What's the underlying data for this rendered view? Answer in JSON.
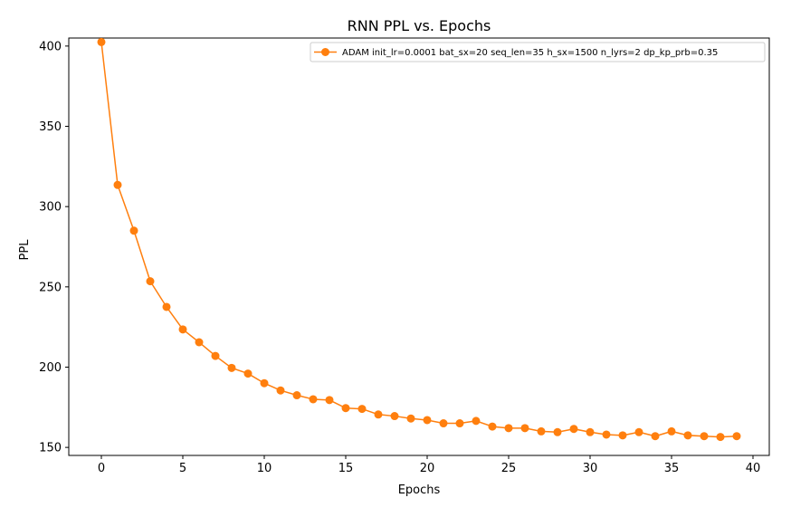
{
  "chart_data": {
    "type": "line",
    "title": "RNN PPL vs. Epochs",
    "xlabel": "Epochs",
    "ylabel": "PPL",
    "xlim": [
      -2,
      41
    ],
    "ylim": [
      145,
      405
    ],
    "xticks": [
      0,
      5,
      10,
      15,
      20,
      25,
      30,
      35,
      40
    ],
    "yticks": [
      150,
      200,
      250,
      300,
      350,
      400
    ],
    "grid": false,
    "legend_position": "top-right",
    "series": [
      {
        "name": "ADAM init_lr=0.0001 bat_sx=20 seq_len=35 h_sx=1500 n_lyrs=2 dp_kp_prb=0.35",
        "color": "#ff7f0e",
        "marker": "circle",
        "x": [
          0,
          1,
          2,
          3,
          4,
          5,
          6,
          7,
          8,
          9,
          10,
          11,
          12,
          13,
          14,
          15,
          16,
          17,
          18,
          19,
          20,
          21,
          22,
          23,
          24,
          25,
          26,
          27,
          28,
          29,
          30,
          31,
          32,
          33,
          34,
          35,
          36,
          37,
          38,
          39
        ],
        "values": [
          402.5,
          313.5,
          285,
          253.5,
          237.5,
          223.5,
          215.5,
          207,
          199.5,
          196,
          190,
          185.5,
          182.5,
          180,
          179.5,
          174.5,
          174,
          170.5,
          169.5,
          168,
          167,
          165,
          165,
          166.5,
          163,
          162,
          162,
          160,
          159.5,
          161.5,
          159.5,
          158,
          157.5,
          159.5,
          157,
          160,
          157.5,
          157,
          156.5,
          157
        ]
      }
    ]
  }
}
